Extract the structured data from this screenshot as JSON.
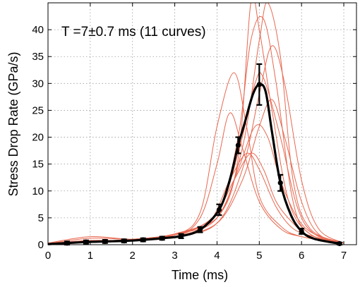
{
  "chart_data": {
    "type": "line",
    "annotation": "T =7±0.7 ms (11 curves)",
    "xlabel": "Time (ms)",
    "ylabel": "Stress Drop Rate (GPa/s)",
    "xlim": [
      0,
      7.3
    ],
    "ylim": [
      0,
      45
    ],
    "xticks": [
      "0",
      "1",
      "2",
      "3",
      "4",
      "5",
      "6",
      "7"
    ],
    "yticks": [
      "0",
      "5",
      "10",
      "15",
      "20",
      "25",
      "30",
      "35",
      "40"
    ],
    "grid": "dotted",
    "colors": {
      "individual": "#e8674f",
      "mean": "#000000"
    },
    "individual_curves": [
      {
        "x": [
          0,
          1,
          2,
          3,
          3.6,
          4.0,
          4.3,
          4.6,
          5.0,
          5.5,
          6.0,
          7.0
        ],
        "y": [
          0.2,
          0.8,
          0.8,
          1.5,
          5,
          15,
          24.5,
          18,
          8,
          3,
          1.5,
          0.3
        ]
      },
      {
        "x": [
          0,
          1,
          2,
          3,
          3.6,
          4.0,
          4.4,
          4.7,
          5.0,
          5.5,
          6.0,
          7.0
        ],
        "y": [
          0.2,
          0.6,
          0.9,
          1.8,
          6,
          22,
          32,
          22,
          9,
          3.5,
          1.5,
          0.3
        ]
      },
      {
        "x": [
          0,
          1,
          2,
          3,
          3.8,
          4.3,
          4.7,
          5.0,
          5.4,
          5.8,
          6.3,
          7.0
        ],
        "y": [
          0.3,
          1.5,
          1.0,
          1.5,
          4,
          12,
          17,
          14,
          7,
          3,
          1.5,
          0.3
        ]
      },
      {
        "x": [
          0,
          1,
          2,
          3,
          4.0,
          4.5,
          4.8,
          5.0,
          5.3,
          5.7,
          6.2,
          7.0
        ],
        "y": [
          0.2,
          1.2,
          1.0,
          1.5,
          5,
          16,
          45,
          40,
          25,
          8,
          2,
          0.3
        ]
      },
      {
        "x": [
          0,
          1,
          2,
          3,
          4.0,
          4.5,
          4.8,
          5.1,
          5.4,
          5.8,
          6.2,
          7.0
        ],
        "y": [
          0.2,
          0.5,
          0.8,
          2.0,
          6,
          20,
          38,
          42,
          30,
          8,
          2,
          0.3
        ]
      },
      {
        "x": [
          0,
          1,
          2,
          3,
          4.0,
          4.6,
          5.0,
          5.2,
          5.5,
          5.8,
          6.2,
          7.0
        ],
        "y": [
          0.2,
          0.5,
          1.0,
          2.0,
          5,
          18,
          38,
          45,
          35,
          12,
          3,
          0.3
        ]
      },
      {
        "x": [
          0,
          1,
          2,
          3,
          4.0,
          4.6,
          5.0,
          5.3,
          5.6,
          6.0,
          6.4,
          7.0
        ],
        "y": [
          0.2,
          0.4,
          0.8,
          1.5,
          4,
          14,
          28,
          37,
          30,
          12,
          3,
          0.3
        ]
      },
      {
        "x": [
          0,
          1,
          2,
          3,
          4.0,
          4.5,
          4.9,
          5.2,
          5.5,
          5.9,
          6.3,
          7.0
        ],
        "y": [
          0.2,
          0.6,
          1.0,
          2.0,
          5,
          14,
          22,
          20,
          12,
          5,
          2,
          0.3
        ]
      },
      {
        "x": [
          0,
          1,
          2,
          3,
          4.0,
          4.5,
          4.9,
          5.1,
          5.5,
          5.9,
          6.3,
          7.0
        ],
        "y": [
          0.2,
          0.5,
          0.9,
          1.5,
          6,
          17,
          30,
          31,
          20,
          7,
          2,
          0.3
        ]
      },
      {
        "x": [
          0,
          1,
          2,
          3,
          4.0,
          4.6,
          5.0,
          5.3,
          5.6,
          6.0,
          6.4,
          7.0
        ],
        "y": [
          0.2,
          0.4,
          0.8,
          1.5,
          4,
          12,
          22,
          27,
          20,
          8,
          2,
          0.3
        ]
      },
      {
        "x": [
          0,
          1,
          2,
          3,
          3.9,
          4.4,
          4.8,
          5.1,
          5.4,
          5.8,
          6.2,
          7.0
        ],
        "y": [
          0.2,
          0.6,
          1.0,
          1.8,
          5,
          12,
          17,
          14,
          8,
          4,
          1.5,
          0.3
        ]
      }
    ],
    "mean_curve": {
      "x": [
        0,
        0.45,
        0.9,
        1.35,
        1.8,
        2.25,
        2.7,
        3.15,
        3.6,
        4.05,
        4.3,
        4.5,
        4.65,
        4.85,
        5.0,
        5.15,
        5.3,
        5.5,
        5.75,
        6.0,
        6.3,
        6.9
      ],
      "y": [
        0.1,
        0.3,
        0.5,
        0.6,
        0.7,
        0.9,
        1.2,
        1.6,
        2.8,
        6.5,
        12,
        18.5,
        22.5,
        28,
        29.8,
        28.5,
        21,
        11.5,
        5.5,
        2.5,
        1.1,
        0.2
      ]
    },
    "error_bars": [
      {
        "x": 0.45,
        "y": 0.3,
        "err": 0.3
      },
      {
        "x": 0.9,
        "y": 0.5,
        "err": 0.3
      },
      {
        "x": 1.35,
        "y": 0.6,
        "err": 0.3
      },
      {
        "x": 1.8,
        "y": 0.7,
        "err": 0.3
      },
      {
        "x": 2.25,
        "y": 0.9,
        "err": 0.3
      },
      {
        "x": 2.7,
        "y": 1.2,
        "err": 0.3
      },
      {
        "x": 3.15,
        "y": 1.6,
        "err": 0.4
      },
      {
        "x": 3.6,
        "y": 2.8,
        "err": 0.5
      },
      {
        "x": 4.05,
        "y": 6.5,
        "err": 1.0
      },
      {
        "x": 4.5,
        "y": 18.5,
        "err": 1.5
      },
      {
        "x": 5.0,
        "y": 29.8,
        "err": 3.8
      },
      {
        "x": 5.5,
        "y": 11.5,
        "err": 1.5
      },
      {
        "x": 6.0,
        "y": 2.5,
        "err": 0.5
      },
      {
        "x": 6.9,
        "y": 0.2,
        "err": 0.2
      }
    ]
  }
}
